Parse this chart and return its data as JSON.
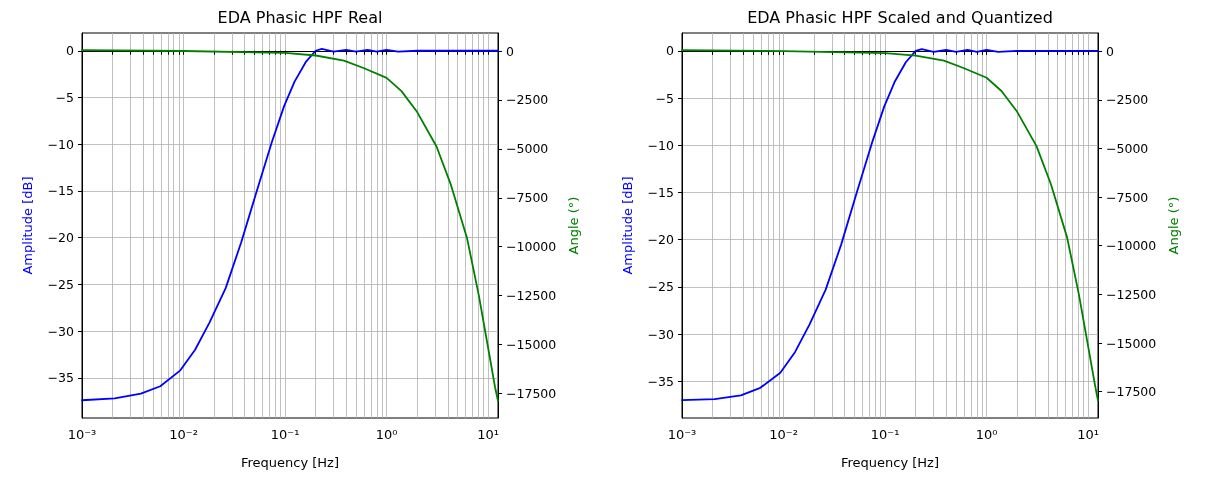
{
  "chart_data": [
    {
      "type": "line",
      "title": "EDA Phasic HPF Real",
      "xlabel": "Frequency [Hz]",
      "ylabel": "Amplitude [dB]",
      "y2label": "Angle (°)",
      "log": "x",
      "grid": true,
      "marker": "none",
      "xlim": [
        0.001,
        12.5
      ],
      "xticks": [
        {
          "value": 0.001,
          "label": "10⁻³"
        },
        {
          "value": 0.002,
          "label": null
        },
        {
          "value": 0.003,
          "label": null
        },
        {
          "value": 0.004,
          "label": null
        },
        {
          "value": 0.005,
          "label": null
        },
        {
          "value": 0.006,
          "label": null
        },
        {
          "value": 0.007,
          "label": null
        },
        {
          "value": 0.008,
          "label": null
        },
        {
          "value": 0.009,
          "label": null
        },
        {
          "value": 0.01,
          "label": "10⁻²"
        },
        {
          "value": 0.02,
          "label": null
        },
        {
          "value": 0.03,
          "label": null
        },
        {
          "value": 0.04,
          "label": null
        },
        {
          "value": 0.05,
          "label": null
        },
        {
          "value": 0.06,
          "label": null
        },
        {
          "value": 0.07,
          "label": null
        },
        {
          "value": 0.08,
          "label": null
        },
        {
          "value": 0.09,
          "label": null
        },
        {
          "value": 0.1,
          "label": "10⁻¹"
        },
        {
          "value": 0.2,
          "label": null
        },
        {
          "value": 0.3,
          "label": null
        },
        {
          "value": 0.4,
          "label": null
        },
        {
          "value": 0.5,
          "label": null
        },
        {
          "value": 0.6,
          "label": null
        },
        {
          "value": 0.7,
          "label": null
        },
        {
          "value": 0.8,
          "label": null
        },
        {
          "value": 0.9,
          "label": null
        },
        {
          "value": 1,
          "label": "10⁰"
        },
        {
          "value": 2,
          "label": null
        },
        {
          "value": 3,
          "label": null
        },
        {
          "value": 4,
          "label": null
        },
        {
          "value": 5,
          "label": null
        },
        {
          "value": 6,
          "label": null
        },
        {
          "value": 7,
          "label": null
        },
        {
          "value": 8,
          "label": null
        },
        {
          "value": 9,
          "label": null
        },
        {
          "value": 10,
          "label": "10¹"
        }
      ],
      "ylim": [
        -39.3,
        1.9
      ],
      "yticks": [
        0,
        -5,
        -10,
        -15,
        -20,
        -25,
        -30,
        -35
      ],
      "y2lim": [
        -18750,
        920
      ],
      "y2ticks": [
        0,
        -2500,
        -5000,
        -7500,
        -10000,
        -12500,
        -15000,
        -17500
      ],
      "series": [
        {
          "color": "#0000ff",
          "x": [
            0.001,
            0.0021,
            0.0038,
            0.0059,
            0.0093,
            0.013,
            0.018,
            0.026,
            0.037,
            0.052,
            0.074,
            0.098,
            0.124,
            0.16,
            0.2,
            0.23,
            0.3,
            0.4,
            0.5,
            0.65,
            0.8,
            1,
            1.3,
            2,
            4,
            8,
            12.5
          ],
          "values": [
            -37.4,
            -37.2,
            -36.7,
            -35.9,
            -34.2,
            -32.0,
            -29.1,
            -25.4,
            -20.5,
            -15.2,
            -9.8,
            -5.9,
            -3.3,
            -1.2,
            0,
            0.2,
            -0.1,
            0.1,
            -0.1,
            0.1,
            -0.1,
            0.1,
            -0.1,
            0,
            0,
            0,
            0
          ]
        },
        {
          "color": "#008000",
          "axis": "y2",
          "x": [
            0.001,
            0.01,
            0.1,
            0.2,
            0.38,
            0.6,
            1,
            1.4,
            2.0,
            3.1,
            4.3,
            6.2,
            8.1,
            10.2,
            11.7,
            12.5
          ],
          "values": [
            50,
            0,
            -100,
            -230,
            -490,
            -880,
            -1370,
            -2050,
            -3120,
            -4880,
            -6840,
            -9570,
            -12500,
            -15430,
            -17190,
            -17870
          ]
        }
      ]
    },
    {
      "type": "line",
      "title": "EDA Phasic HPF Scaled and Quantized",
      "xlabel": "Frequency [Hz]",
      "ylabel": "Amplitude [dB]",
      "y2label": "Angle (°)",
      "log": "x",
      "grid": true,
      "marker": "none",
      "xlim": [
        0.001,
        12.5
      ],
      "xticks": [
        {
          "value": 0.001,
          "label": "10⁻³"
        },
        {
          "value": 0.002,
          "label": null
        },
        {
          "value": 0.003,
          "label": null
        },
        {
          "value": 0.004,
          "label": null
        },
        {
          "value": 0.005,
          "label": null
        },
        {
          "value": 0.006,
          "label": null
        },
        {
          "value": 0.007,
          "label": null
        },
        {
          "value": 0.008,
          "label": null
        },
        {
          "value": 0.009,
          "label": null
        },
        {
          "value": 0.01,
          "label": "10⁻²"
        },
        {
          "value": 0.02,
          "label": null
        },
        {
          "value": 0.03,
          "label": null
        },
        {
          "value": 0.04,
          "label": null
        },
        {
          "value": 0.05,
          "label": null
        },
        {
          "value": 0.06,
          "label": null
        },
        {
          "value": 0.07,
          "label": null
        },
        {
          "value": 0.08,
          "label": null
        },
        {
          "value": 0.09,
          "label": null
        },
        {
          "value": 0.1,
          "label": "10⁻¹"
        },
        {
          "value": 0.2,
          "label": null
        },
        {
          "value": 0.3,
          "label": null
        },
        {
          "value": 0.4,
          "label": null
        },
        {
          "value": 0.5,
          "label": null
        },
        {
          "value": 0.6,
          "label": null
        },
        {
          "value": 0.7,
          "label": null
        },
        {
          "value": 0.8,
          "label": null
        },
        {
          "value": 0.9,
          "label": null
        },
        {
          "value": 1,
          "label": "10⁰"
        },
        {
          "value": 2,
          "label": null
        },
        {
          "value": 3,
          "label": null
        },
        {
          "value": 4,
          "label": null
        },
        {
          "value": 5,
          "label": null
        },
        {
          "value": 6,
          "label": null
        },
        {
          "value": 7,
          "label": null
        },
        {
          "value": 8,
          "label": null
        },
        {
          "value": 9,
          "label": null
        },
        {
          "value": 10,
          "label": "10¹"
        }
      ],
      "ylim": [
        -38.9,
        1.9
      ],
      "yticks": [
        0,
        -5,
        -10,
        -15,
        -20,
        -25,
        -30,
        -35
      ],
      "y2lim": [
        -18850,
        930
      ],
      "y2ticks": [
        0,
        -2500,
        -5000,
        -7500,
        -10000,
        -12500,
        -15000,
        -17500
      ],
      "series": [
        {
          "color": "#0000ff",
          "x": [
            0.001,
            0.0021,
            0.0038,
            0.0059,
            0.0093,
            0.013,
            0.018,
            0.026,
            0.037,
            0.052,
            0.074,
            0.098,
            0.124,
            0.16,
            0.2,
            0.23,
            0.3,
            0.4,
            0.5,
            0.65,
            0.8,
            1,
            1.3,
            2,
            4,
            8,
            12.5
          ],
          "values": [
            -37.0,
            -36.9,
            -36.5,
            -35.7,
            -34.1,
            -31.9,
            -29.0,
            -25.3,
            -20.5,
            -15.2,
            -9.8,
            -5.9,
            -3.3,
            -1.2,
            0,
            0.2,
            -0.1,
            0.1,
            -0.1,
            0.1,
            -0.1,
            0.1,
            -0.1,
            0,
            0,
            0,
            0
          ]
        },
        {
          "color": "#008000",
          "axis": "y2",
          "x": [
            0.001,
            0.01,
            0.1,
            0.2,
            0.38,
            0.6,
            1,
            1.4,
            2.0,
            3.1,
            4.3,
            6.2,
            8.1,
            10.2,
            11.7,
            12.5
          ],
          "values": [
            50,
            0,
            -100,
            -230,
            -490,
            -880,
            -1370,
            -2050,
            -3120,
            -4880,
            -6840,
            -9570,
            -12500,
            -15430,
            -17190,
            -17960
          ]
        }
      ]
    }
  ]
}
